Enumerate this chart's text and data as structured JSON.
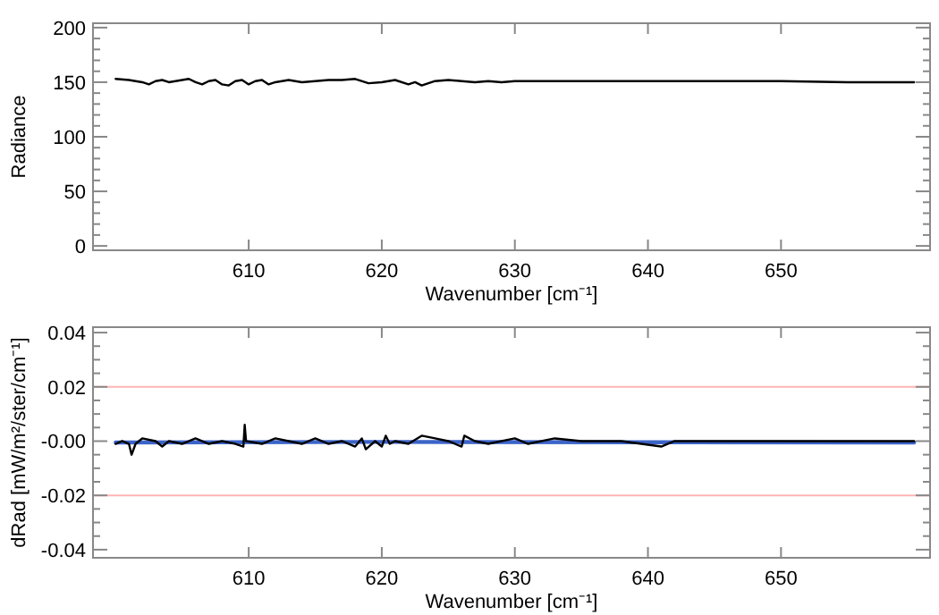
{
  "chart_data": [
    {
      "type": "line",
      "xlabel": "Wavenumber [cm⁻¹]",
      "ylabel": "Radiance",
      "xlim": [
        598.3,
        661.2
      ],
      "ylim": [
        -4,
        204
      ],
      "xticks": [
        610,
        620,
        630,
        640,
        650
      ],
      "yticks": [
        0,
        {
          "value": 10,
          "label": null
        },
        {
          "value": 20,
          "label": null
        },
        {
          "value": 30,
          "label": null
        },
        {
          "value": 40,
          "label": null
        },
        50,
        {
          "value": 60,
          "label": null
        },
        {
          "value": 70,
          "label": null
        },
        {
          "value": 80,
          "label": null
        },
        {
          "value": 90,
          "label": null
        },
        100,
        {
          "value": 110,
          "label": null
        },
        {
          "value": 120,
          "label": null
        },
        {
          "value": 130,
          "label": null
        },
        {
          "value": 140,
          "label": null
        },
        150,
        {
          "value": 160,
          "label": null
        },
        {
          "value": 170,
          "label": null
        },
        {
          "value": 180,
          "label": null
        },
        {
          "value": 190,
          "label": null
        },
        200
      ],
      "series": [
        {
          "color": "#000000",
          "x": [
            600,
            601,
            602,
            602.5,
            603,
            603.5,
            604,
            605,
            605.5,
            606,
            606.5,
            607,
            607.5,
            608,
            608.5,
            609,
            609.5,
            610,
            610.5,
            611,
            611.5,
            612,
            613,
            614,
            615,
            616,
            617,
            618,
            619,
            620,
            621,
            622,
            622.5,
            623,
            624,
            625,
            626,
            627,
            628,
            629,
            630,
            632,
            635,
            640,
            645,
            650,
            655,
            660
          ],
          "values": [
            153,
            152,
            150,
            148,
            151,
            152,
            150,
            152,
            153,
            150,
            148,
            151,
            152,
            148,
            147,
            151,
            152,
            148,
            151,
            152,
            148,
            150,
            152,
            150,
            151,
            152,
            152,
            153,
            149,
            150,
            152,
            148,
            150,
            147,
            151,
            152,
            151,
            150,
            151,
            150,
            151,
            151,
            151,
            151,
            151,
            151,
            150,
            150
          ]
        }
      ]
    },
    {
      "type": "line",
      "xlabel": "Wavenumber [cm⁻¹]",
      "ylabel": "dRad [mW/m²/ster/cm⁻¹]",
      "xlim": [
        598.3,
        661.2
      ],
      "ylim": [
        -0.043,
        0.042
      ],
      "xticks": [
        610,
        620,
        630,
        640,
        650
      ],
      "yticks": [
        -0.04,
        {
          "value": -0.035,
          "label": null
        },
        {
          "value": -0.03,
          "label": null
        },
        {
          "value": -0.025,
          "label": null
        },
        -0.02,
        {
          "value": -0.015,
          "label": null
        },
        {
          "value": -0.01,
          "label": null
        },
        {
          "value": -0.005,
          "label": null
        },
        {
          "value": 0,
          "label": "-0.00"
        },
        {
          "value": 0.005,
          "label": null
        },
        {
          "value": 0.01,
          "label": null
        },
        {
          "value": 0.015,
          "label": null
        },
        {
          "value": 0.02,
          "label": "0.02"
        },
        {
          "value": 0.025,
          "label": null
        },
        {
          "value": 0.03,
          "label": null
        },
        {
          "value": 0.035,
          "label": null
        },
        {
          "value": 0.04,
          "label": "0.04"
        }
      ],
      "ref_lines": [
        {
          "axis": "y",
          "value": 0.02,
          "color": "#ffb4b4"
        },
        {
          "axis": "y",
          "value": -0.02,
          "color": "#ffb4b4"
        }
      ],
      "series": [
        {
          "color": "#3c64c8",
          "x": [
            600,
            620,
            640,
            660
          ],
          "values": [
            -0.0005,
            -0.0003,
            -0.0004,
            -0.0005
          ]
        },
        {
          "color": "#000000",
          "x": [
            600,
            600.5,
            601,
            601.2,
            601.5,
            602,
            603,
            603.5,
            604,
            605,
            606,
            607,
            608,
            609,
            609.6,
            609.7,
            609.8,
            611,
            612,
            613,
            614,
            615,
            616,
            617,
            618,
            618.5,
            618.8,
            619.5,
            620,
            620.3,
            620.6,
            621,
            622,
            623,
            624,
            625,
            626,
            626.2,
            627,
            628,
            630,
            631,
            633,
            635,
            638,
            641,
            642,
            645,
            650,
            655,
            660
          ],
          "values": [
            -0.001,
            0,
            -0.001,
            -0.005,
            -0.001,
            0.001,
            0,
            -0.002,
            0,
            -0.001,
            0.001,
            -0.001,
            0,
            -0.001,
            -0.002,
            0.006,
            0,
            -0.001,
            0.001,
            0,
            -0.001,
            0.001,
            -0.001,
            0,
            -0.002,
            0.001,
            -0.003,
            0,
            -0.002,
            0.002,
            -0.001,
            0,
            -0.001,
            0.002,
            0.001,
            0,
            -0.002,
            0.002,
            0,
            -0.001,
            0.001,
            -0.001,
            0.001,
            0,
            0,
            -0.002,
            0,
            0,
            0,
            0,
            0
          ]
        }
      ]
    }
  ]
}
